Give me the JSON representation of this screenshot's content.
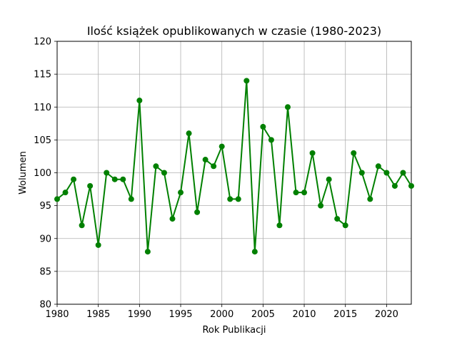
{
  "chart_data": {
    "type": "line",
    "title": "Ilość książek opublikowanych w czasie (1980-2023)",
    "xlabel": "Rok Publikacji",
    "ylabel": "Wolumen",
    "xlim": [
      1980,
      2023
    ],
    "ylim": [
      80,
      120
    ],
    "xticks": [
      1980,
      1985,
      1990,
      1995,
      2000,
      2005,
      2010,
      2015,
      2020
    ],
    "yticks": [
      80,
      85,
      90,
      95,
      100,
      105,
      110,
      115,
      120
    ],
    "grid": true,
    "legend": "none",
    "series": [
      {
        "color": "#008000",
        "marker": "circle",
        "x": [
          1980,
          1981,
          1982,
          1983,
          1984,
          1985,
          1986,
          1987,
          1988,
          1989,
          1990,
          1991,
          1992,
          1993,
          1994,
          1995,
          1996,
          1997,
          1998,
          1999,
          2000,
          2001,
          2002,
          2003,
          2004,
          2005,
          2006,
          2007,
          2008,
          2009,
          2010,
          2011,
          2012,
          2013,
          2014,
          2015,
          2016,
          2017,
          2018,
          2019,
          2020,
          2021,
          2022,
          2023
        ],
        "values": [
          96,
          97,
          99,
          92,
          98,
          89,
          100,
          99,
          99,
          96,
          111,
          88,
          101,
          100,
          93,
          97,
          106,
          94,
          102,
          101,
          104,
          96,
          96,
          114,
          88,
          107,
          105,
          92,
          110,
          97,
          97,
          103,
          95,
          99,
          93,
          92,
          103,
          100,
          96,
          101,
          100,
          98,
          100,
          98
        ]
      }
    ]
  }
}
